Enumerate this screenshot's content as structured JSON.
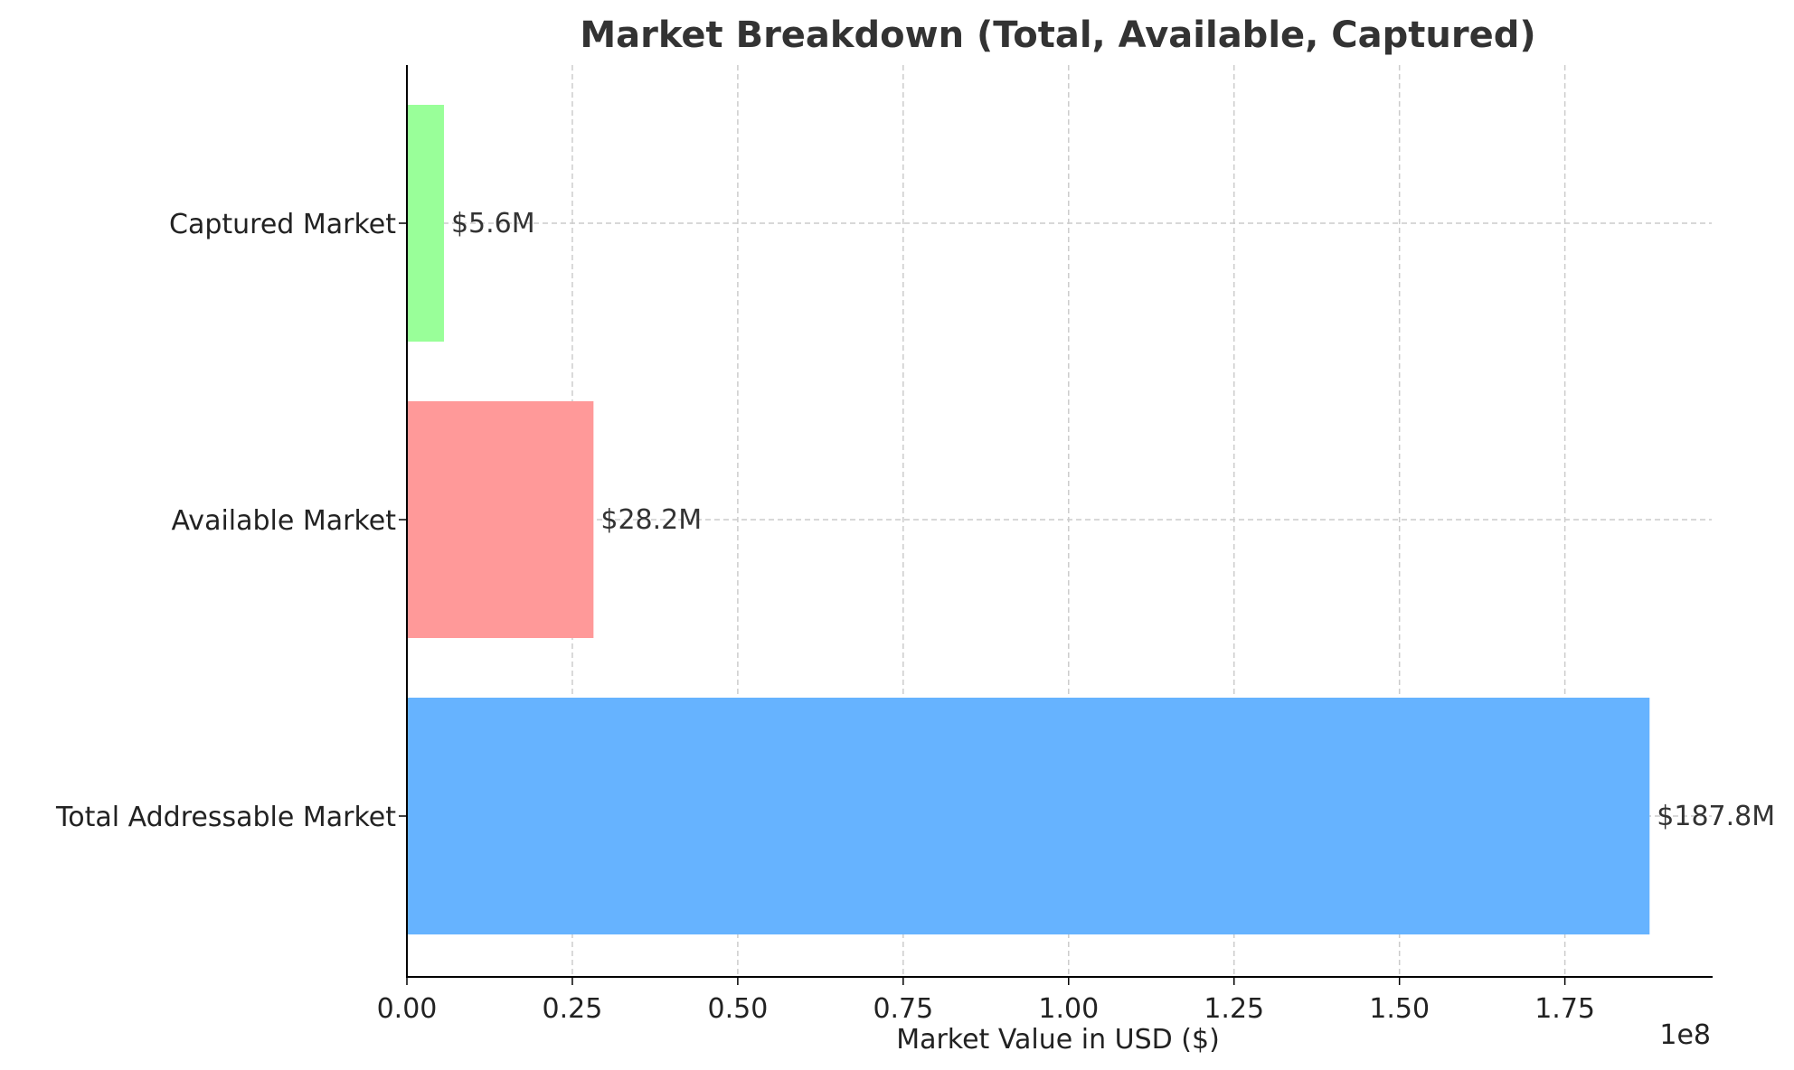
{
  "chart_data": {
    "type": "bar",
    "orientation": "horizontal",
    "title": "Market Breakdown (Total, Available, Captured)",
    "xlabel": "Market Value in USD ($)",
    "ylabel": "",
    "x_offset_text": "1e8",
    "categories": [
      "Total Addressable Market",
      "Available Market",
      "Captured Market"
    ],
    "values": [
      187800000,
      28200000,
      5600000
    ],
    "value_labels": [
      "$187.8M",
      "$28.2M",
      "$5.6M"
    ],
    "bar_colors": [
      "#66b3ff",
      "#ff9999",
      "#99ff99"
    ],
    "xlim": [
      0,
      197190000
    ],
    "xticks": [
      0,
      25000000,
      50000000,
      75000000,
      100000000,
      125000000,
      150000000,
      175000000
    ],
    "xtick_labels": [
      "0.00",
      "0.25",
      "0.50",
      "0.75",
      "1.00",
      "1.25",
      "1.50",
      "1.75"
    ],
    "grid": true,
    "grid_style": "dashed",
    "legend": "none"
  }
}
